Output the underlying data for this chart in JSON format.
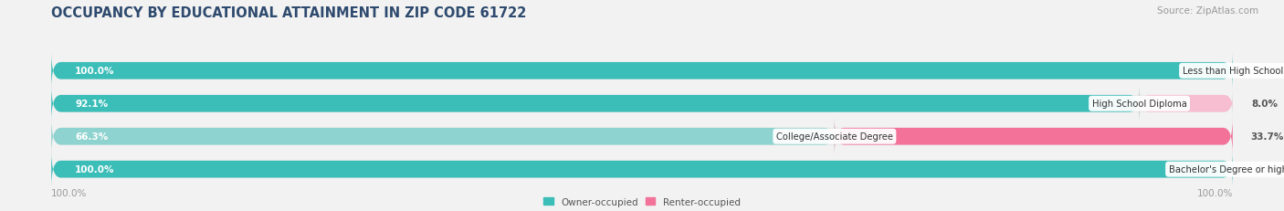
{
  "title": "OCCUPANCY BY EDUCATIONAL ATTAINMENT IN ZIP CODE 61722",
  "source": "Source: ZipAtlas.com",
  "categories": [
    "Less than High School",
    "High School Diploma",
    "College/Associate Degree",
    "Bachelor's Degree or higher"
  ],
  "owner_values": [
    100.0,
    92.1,
    66.3,
    100.0
  ],
  "renter_values": [
    0.0,
    8.0,
    33.7,
    0.0
  ],
  "owner_colors": [
    "#3bbdb8",
    "#3bbdb8",
    "#8ed3cf",
    "#3bbdb8"
  ],
  "renter_colors": [
    "#f7bdd0",
    "#f7bdd0",
    "#f2729a",
    "#f7bdd0"
  ],
  "bg_color": "#f2f2f2",
  "bar_bg_color": "#e2e2e2",
  "title_color": "#2e4a6e",
  "source_color": "#999999",
  "owner_label_color": "#ffffff",
  "renter_label_color": "#555555",
  "cat_label_color": "#444444",
  "legend_label_owner": "Owner-occupied",
  "legend_label_renter": "Renter-occupied",
  "owner_legend_color": "#3bbdb8",
  "renter_legend_color": "#f2729a",
  "tick_color": "#999999",
  "left_tick": "100.0%",
  "right_tick": "100.0%"
}
